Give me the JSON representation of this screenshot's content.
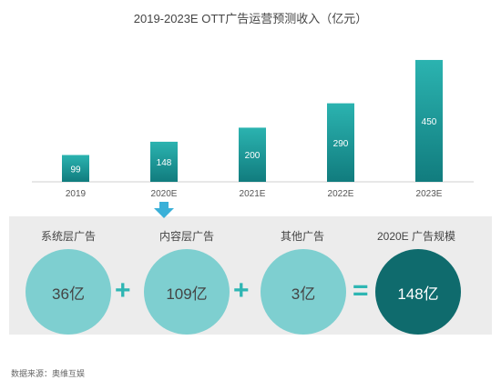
{
  "chart_data": {
    "type": "bar",
    "title": "2019-2023E OTT广告运营预测收入（亿元）",
    "categories": [
      "2019",
      "2020E",
      "2021E",
      "2022E",
      "2023E"
    ],
    "values": [
      99,
      148,
      200,
      290,
      450
    ],
    "xlabel": "",
    "ylabel": "",
    "ylim": [
      0,
      470
    ],
    "grid": false,
    "colors": {
      "bar_top": "#2bb3b0",
      "bar_bottom": "#117c7e"
    }
  },
  "breakdown": {
    "segments": [
      {
        "label": "系统层广告",
        "value": "36亿"
      },
      {
        "label": "内容层广告",
        "value": "109亿"
      },
      {
        "label": "其他广告",
        "value": "3亿"
      }
    ],
    "total": {
      "label": "2020E 广告规模",
      "value": "148亿"
    },
    "plus_symbol": "+",
    "equals_symbol": "=",
    "colors": {
      "light_circle": "#7ecfd0",
      "dark_circle": "#0f6b6d",
      "operator": "#2fb6b3",
      "panel": "#ececec"
    }
  },
  "source_note": "数据来源：奥维互娱"
}
